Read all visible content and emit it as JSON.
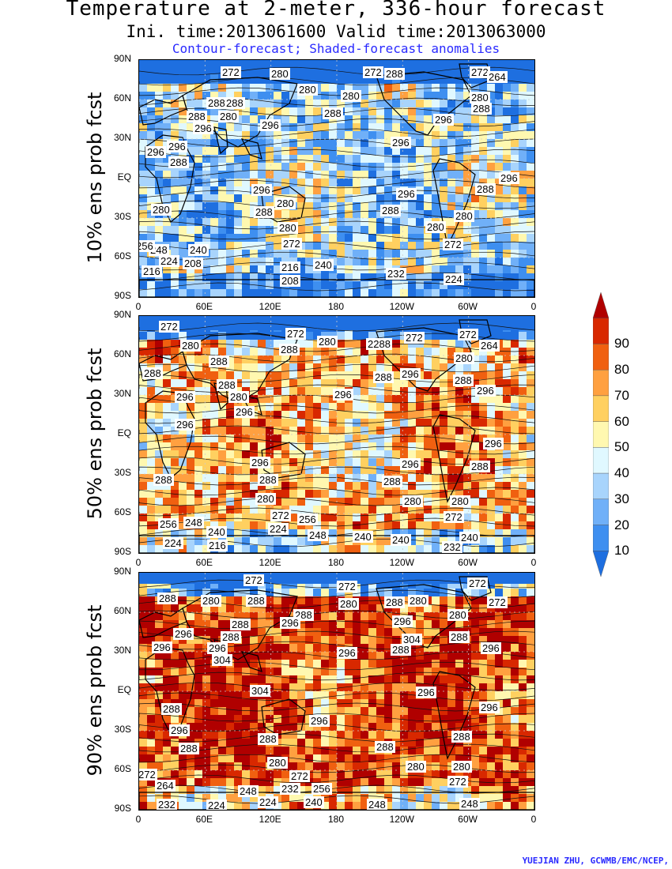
{
  "title": "Temperature at 2-meter, 336-hour forecast",
  "subtitle": "Ini. time:2013061600    Valid time:2013063000",
  "legend_line": "Contour-forecast; Shaded-forecast anomalies",
  "credit": "YUEJIAN ZHU, GCWMB/EMC/NCEP,",
  "y_ticks": [
    "90N",
    "60N",
    "30N",
    "EQ",
    "30S",
    "60S",
    "90S"
  ],
  "x_ticks": [
    "0",
    "60E",
    "120E",
    "180",
    "120W",
    "60W",
    "0"
  ],
  "colorbar": {
    "labels": [
      "10",
      "20",
      "30",
      "40",
      "50",
      "60",
      "70",
      "80",
      "90"
    ],
    "colors": [
      "#1e6fe0",
      "#3e8ff0",
      "#70b0f8",
      "#a8d4fc",
      "#e0f8ff",
      "#fff8b0",
      "#ffd060",
      "#ffa040",
      "#f06010",
      "#d82800",
      "#b00000"
    ]
  },
  "panels": [
    {
      "ylabel": "10% ens prob fcst",
      "labels": [
        {
          "t": "272",
          "x": 103,
          "y": 8
        },
        {
          "t": "280",
          "x": 165,
          "y": 10
        },
        {
          "t": "272",
          "x": 283,
          "y": 8
        },
        {
          "t": "288",
          "x": 310,
          "y": 10
        },
        {
          "t": "272",
          "x": 418,
          "y": 8
        },
        {
          "t": "264",
          "x": 440,
          "y": 14
        },
        {
          "t": "280",
          "x": 200,
          "y": 30
        },
        {
          "t": "280",
          "x": 255,
          "y": 38
        },
        {
          "t": "280",
          "x": 418,
          "y": 40
        },
        {
          "t": "288",
          "x": 85,
          "y": 47
        },
        {
          "t": "288",
          "x": 108,
          "y": 47
        },
        {
          "t": "288",
          "x": 420,
          "y": 54
        },
        {
          "t": "288",
          "x": 60,
          "y": 64
        },
        {
          "t": "280",
          "x": 100,
          "y": 64
        },
        {
          "t": "288",
          "x": 232,
          "y": 60
        },
        {
          "t": "296",
          "x": 68,
          "y": 79
        },
        {
          "t": "296",
          "x": 153,
          "y": 75
        },
        {
          "t": "296",
          "x": 372,
          "y": 68
        },
        {
          "t": "296",
          "x": 35,
          "y": 102
        },
        {
          "t": "296",
          "x": 8,
          "y": 109
        },
        {
          "t": "296",
          "x": 318,
          "y": 97
        },
        {
          "t": "288",
          "x": 37,
          "y": 122
        },
        {
          "t": "296",
          "x": 455,
          "y": 142
        },
        {
          "t": "288",
          "x": 425,
          "y": 156
        },
        {
          "t": "296",
          "x": 142,
          "y": 157
        },
        {
          "t": "296",
          "x": 325,
          "y": 162
        },
        {
          "t": "280",
          "x": 172,
          "y": 174
        },
        {
          "t": "280",
          "x": 15,
          "y": 182
        },
        {
          "t": "288",
          "x": 145,
          "y": 185
        },
        {
          "t": "288",
          "x": 305,
          "y": 183
        },
        {
          "t": "280",
          "x": 362,
          "y": 204
        },
        {
          "t": "280",
          "x": 398,
          "y": 190
        },
        {
          "t": "280",
          "x": 175,
          "y": 205
        },
        {
          "t": "272",
          "x": 180,
          "y": 225
        },
        {
          "t": "272",
          "x": 384,
          "y": 226
        },
        {
          "t": "248",
          "x": 12,
          "y": 233
        },
        {
          "t": "240",
          "x": 62,
          "y": 233
        },
        {
          "t": "256",
          "x": -6,
          "y": 228
        },
        {
          "t": "224",
          "x": 25,
          "y": 247
        },
        {
          "t": "208",
          "x": 55,
          "y": 250
        },
        {
          "t": "216",
          "x": 3,
          "y": 260
        },
        {
          "t": "216",
          "x": 178,
          "y": 255
        },
        {
          "t": "240",
          "x": 220,
          "y": 252
        },
        {
          "t": "232",
          "x": 312,
          "y": 263
        },
        {
          "t": "224",
          "x": 385,
          "y": 270
        },
        {
          "t": "208",
          "x": 178,
          "y": 272
        }
      ]
    },
    {
      "ylabel": "50% ens prob fcst",
      "labels": [
        {
          "t": "272",
          "x": 25,
          "y": 6
        },
        {
          "t": "280",
          "x": 52,
          "y": 30
        },
        {
          "t": "272",
          "x": 185,
          "y": 15
        },
        {
          "t": "280",
          "x": 225,
          "y": 25
        },
        {
          "t": "288",
          "x": 177,
          "y": 35
        },
        {
          "t": "2288",
          "x": 287,
          "y": 28
        },
        {
          "t": "272",
          "x": 335,
          "y": 20
        },
        {
          "t": "272",
          "x": 403,
          "y": 16
        },
        {
          "t": "264",
          "x": 430,
          "y": 30
        },
        {
          "t": "288",
          "x": 88,
          "y": 50
        },
        {
          "t": "280",
          "x": 398,
          "y": 46
        },
        {
          "t": "288",
          "x": 4,
          "y": 65
        },
        {
          "t": "288",
          "x": 296,
          "y": 70
        },
        {
          "t": "296",
          "x": 330,
          "y": 66
        },
        {
          "t": "288",
          "x": 397,
          "y": 74
        },
        {
          "t": "288",
          "x": 98,
          "y": 80
        },
        {
          "t": "296",
          "x": 45,
          "y": 95
        },
        {
          "t": "280",
          "x": 113,
          "y": 95
        },
        {
          "t": "296",
          "x": 245,
          "y": 92
        },
        {
          "t": "296",
          "x": 425,
          "y": 87
        },
        {
          "t": "296",
          "x": 120,
          "y": 114
        },
        {
          "t": "296",
          "x": 45,
          "y": 130
        },
        {
          "t": "296",
          "x": 435,
          "y": 154
        },
        {
          "t": "296",
          "x": 140,
          "y": 178
        },
        {
          "t": "296",
          "x": 330,
          "y": 180
        },
        {
          "t": "288",
          "x": 418,
          "y": 183
        },
        {
          "t": "288",
          "x": 18,
          "y": 200
        },
        {
          "t": "288",
          "x": 150,
          "y": 200
        },
        {
          "t": "288",
          "x": 307,
          "y": 202
        },
        {
          "t": "280",
          "x": 147,
          "y": 224
        },
        {
          "t": "280",
          "x": 333,
          "y": 227
        },
        {
          "t": "280",
          "x": 393,
          "y": 227
        },
        {
          "t": "272",
          "x": 166,
          "y": 245
        },
        {
          "t": "256",
          "x": 200,
          "y": 250
        },
        {
          "t": "272",
          "x": 385,
          "y": 247
        },
        {
          "t": "256",
          "x": 24,
          "y": 256
        },
        {
          "t": "248",
          "x": 56,
          "y": 254
        },
        {
          "t": "240",
          "x": 85,
          "y": 266
        },
        {
          "t": "224",
          "x": 163,
          "y": 262
        },
        {
          "t": "248",
          "x": 213,
          "y": 270
        },
        {
          "t": "240",
          "x": 270,
          "y": 272
        },
        {
          "t": "240",
          "x": 318,
          "y": 276
        },
        {
          "t": "240",
          "x": 405,
          "y": 273
        },
        {
          "t": "224",
          "x": 30,
          "y": 280
        },
        {
          "t": "216",
          "x": 86,
          "y": 283
        },
        {
          "t": "232",
          "x": 383,
          "y": 285
        }
      ]
    },
    {
      "ylabel": "90% ens prob fcst",
      "labels": [
        {
          "t": "272",
          "x": 132,
          "y": 2
        },
        {
          "t": "272",
          "x": 250,
          "y": 10
        },
        {
          "t": "288",
          "x": 23,
          "y": 25
        },
        {
          "t": "280",
          "x": 78,
          "y": 28
        },
        {
          "t": "288",
          "x": 135,
          "y": 28
        },
        {
          "t": "280",
          "x": 252,
          "y": 32
        },
        {
          "t": "288",
          "x": 310,
          "y": 30
        },
        {
          "t": "280",
          "x": 340,
          "y": 28
        },
        {
          "t": "272",
          "x": 415,
          "y": 6
        },
        {
          "t": "272",
          "x": 440,
          "y": 30
        },
        {
          "t": "288",
          "x": 195,
          "y": 46
        },
        {
          "t": "296",
          "x": 178,
          "y": 56
        },
        {
          "t": "280",
          "x": 390,
          "y": 46
        },
        {
          "t": "296",
          "x": 320,
          "y": 54
        },
        {
          "t": "288",
          "x": 115,
          "y": 58
        },
        {
          "t": "296",
          "x": 43,
          "y": 70
        },
        {
          "t": "288",
          "x": 103,
          "y": 74
        },
        {
          "t": "304",
          "x": 332,
          "y": 77
        },
        {
          "t": "288",
          "x": 392,
          "y": 74
        },
        {
          "t": "296",
          "x": 16,
          "y": 87
        },
        {
          "t": "296",
          "x": 86,
          "y": 88
        },
        {
          "t": "296",
          "x": 250,
          "y": 94
        },
        {
          "t": "288",
          "x": 318,
          "y": 90
        },
        {
          "t": "296",
          "x": 432,
          "y": 88
        },
        {
          "t": "304",
          "x": 92,
          "y": 103
        },
        {
          "t": "304",
          "x": 140,
          "y": 142
        },
        {
          "t": "296",
          "x": 350,
          "y": 144
        },
        {
          "t": "288",
          "x": 28,
          "y": 165
        },
        {
          "t": "296",
          "x": 430,
          "y": 163
        },
        {
          "t": "296",
          "x": 215,
          "y": 180
        },
        {
          "t": "296",
          "x": 38,
          "y": 192
        },
        {
          "t": "288",
          "x": 395,
          "y": 200
        },
        {
          "t": "288",
          "x": 150,
          "y": 203
        },
        {
          "t": "288",
          "x": 50,
          "y": 215
        },
        {
          "t": "288",
          "x": 298,
          "y": 213
        },
        {
          "t": "280",
          "x": 162,
          "y": 233
        },
        {
          "t": "280",
          "x": 337,
          "y": 238
        },
        {
          "t": "280",
          "x": 395,
          "y": 238
        },
        {
          "t": "272",
          "x": -3,
          "y": 248
        },
        {
          "t": "272",
          "x": 190,
          "y": 250
        },
        {
          "t": "272",
          "x": 390,
          "y": 257
        },
        {
          "t": "264",
          "x": 20,
          "y": 262
        },
        {
          "t": "248",
          "x": 125,
          "y": 269
        },
        {
          "t": "232",
          "x": 178,
          "y": 266
        },
        {
          "t": "256",
          "x": 218,
          "y": 266
        },
        {
          "t": "248",
          "x": 405,
          "y": 285
        },
        {
          "t": "232",
          "x": 22,
          "y": 286
        },
        {
          "t": "224",
          "x": 85,
          "y": 287
        },
        {
          "t": "224",
          "x": 150,
          "y": 283
        },
        {
          "t": "240",
          "x": 208,
          "y": 283
        },
        {
          "t": "248",
          "x": 288,
          "y": 286
        }
      ]
    }
  ]
}
